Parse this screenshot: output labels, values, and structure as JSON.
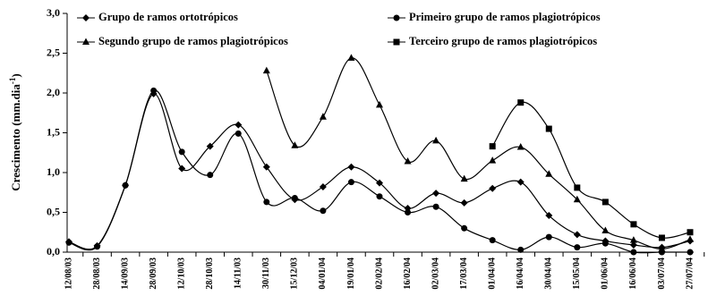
{
  "chart_data": {
    "type": "line",
    "ylabel": [
      "Crescimento  (mm.dia",
      "-1",
      ")"
    ],
    "categories": [
      "12/08/03",
      "28/08/03",
      "14/09/03",
      "28/09/03",
      "12/10/03",
      "28/10/03",
      "14/11/03",
      "30/11/03",
      "15/12/03",
      "04/01/04",
      "19/01/04",
      "02/02/04",
      "16/02/04",
      "02/03/04",
      "17/03/04",
      "01/04/04",
      "16/04/04",
      "30/04/04",
      "15/05/04",
      "01/06/04",
      "16/06/04",
      "03/07/04",
      "27/07/04"
    ],
    "series": [
      {
        "name": "Grupo de ramos ortotrópicos",
        "color": "#000000",
        "marker": "diamond",
        "values": [
          0.13,
          0.08,
          0.84,
          1.99,
          1.05,
          1.33,
          1.6,
          1.07,
          0.66,
          0.82,
          1.07,
          0.87,
          0.55,
          0.74,
          0.62,
          0.8,
          0.88,
          0.46,
          0.22,
          0.14,
          0.09,
          0.06,
          0.14
        ]
      },
      {
        "name": "Primeiro grupo de ramos plagiotrópicos",
        "color": "#000000",
        "marker": "circle",
        "values": [
          0.12,
          0.07,
          0.84,
          2.03,
          1.26,
          0.97,
          1.49,
          0.63,
          0.68,
          0.52,
          0.88,
          0.7,
          0.5,
          0.57,
          0.3,
          0.15,
          0.03,
          0.19,
          0.06,
          0.11,
          0.0,
          0.0,
          0.0
        ]
      },
      {
        "name": "Segundo grupo de ramos plagiotrópicos",
        "color": "#000000",
        "marker": "triangle",
        "values": [
          null,
          null,
          null,
          null,
          null,
          null,
          null,
          2.28,
          1.34,
          1.7,
          2.44,
          1.85,
          1.14,
          1.4,
          0.92,
          1.15,
          1.32,
          0.98,
          0.66,
          0.27,
          0.15,
          0.04,
          0.16
        ]
      },
      {
        "name": "Terceiro grupo de ramos plagiotrópicos",
        "color": "#000000",
        "marker": "square",
        "values": [
          null,
          null,
          null,
          null,
          null,
          null,
          null,
          null,
          null,
          null,
          null,
          null,
          null,
          null,
          null,
          1.33,
          1.88,
          1.55,
          0.81,
          0.63,
          0.35,
          0.18,
          0.25
        ]
      }
    ],
    "ylim": [
      0,
      3
    ],
    "yticks": [
      {
        "value": 0,
        "label": "0,0"
      },
      {
        "value": 0.5,
        "label": "0,5"
      },
      {
        "value": 1,
        "label": "1,0"
      },
      {
        "value": 1.5,
        "label": "1,5"
      },
      {
        "value": 2,
        "label": "2,0"
      },
      {
        "value": 2.5,
        "label": "2,5"
      },
      {
        "value": 3,
        "label": "3,0"
      }
    ],
    "grid": false
  }
}
